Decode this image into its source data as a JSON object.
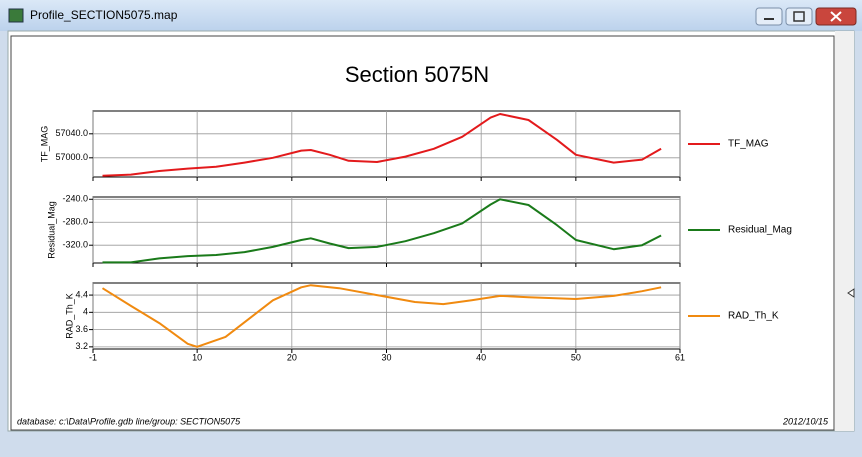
{
  "window": {
    "title": "Profile_SECTION5075.map"
  },
  "figure_title": "Section 5075N",
  "footer": {
    "left": "database: c:\\Data\\Profile.gdb  line/group: SECTION5075",
    "right": "2012/10/15"
  },
  "chart_data": [
    {
      "type": "line",
      "y_label": "TF_MAG",
      "grid": true,
      "x": [
        0,
        3,
        6,
        9,
        12,
        15,
        18,
        21,
        22,
        24,
        26,
        29,
        32,
        35,
        38,
        41,
        42,
        45,
        48,
        50,
        54,
        57,
        59
      ],
      "series": [
        {
          "name": "TF_MAG",
          "color": "#e31a1c",
          "values": [
            56970,
            56972,
            56978,
            56982,
            56985,
            56992,
            57000,
            57012,
            57013,
            57005,
            56995,
            56993,
            57002,
            57015,
            57035,
            57067,
            57073,
            57063,
            57030,
            57005,
            56992,
            56997,
            57015
          ]
        }
      ],
      "xlim": [
        -1,
        61
      ],
      "ylim": [
        56968,
        57078
      ],
      "yticks": [
        {
          "value": 57000,
          "label": "57000.0"
        },
        {
          "value": 57040,
          "label": "57040.0"
        }
      ]
    },
    {
      "type": "line",
      "y_label": "Residual_Mag",
      "grid": true,
      "x": [
        0,
        3,
        6,
        9,
        12,
        15,
        18,
        21,
        22,
        24,
        26,
        29,
        32,
        35,
        38,
        41,
        42,
        45,
        48,
        50,
        54,
        57,
        59
      ],
      "series": [
        {
          "name": "Residual_Mag",
          "color": "#1a7a1a",
          "values": [
            -350,
            -350,
            -343,
            -339,
            -337,
            -332,
            -323,
            -311,
            -308,
            -317,
            -325,
            -323,
            -313,
            -299,
            -282,
            -249,
            -240,
            -250,
            -285,
            -311,
            -327,
            -320,
            -303
          ]
        }
      ],
      "xlim": [
        -1,
        61
      ],
      "ylim": [
        -351,
        -236
      ],
      "yticks": [
        {
          "value": -320,
          "label": "-320.0"
        },
        {
          "value": -280,
          "label": "-280.0"
        },
        {
          "value": -240,
          "label": "-240.0"
        }
      ]
    },
    {
      "type": "line",
      "y_label": "RAD_Th_K",
      "grid": true,
      "x": [
        0,
        3,
        6,
        9,
        10,
        13,
        16,
        18,
        21,
        22,
        25,
        29,
        33,
        36,
        39,
        42,
        45,
        50,
        54,
        57,
        59
      ],
      "series": [
        {
          "name": "RAD_Th_K",
          "color": "#f08a10",
          "values": [
            4.56,
            4.15,
            3.75,
            3.27,
            3.2,
            3.43,
            3.94,
            4.28,
            4.58,
            4.63,
            4.56,
            4.4,
            4.24,
            4.19,
            4.28,
            4.38,
            4.35,
            4.31,
            4.38,
            4.49,
            4.58
          ]
        }
      ],
      "xlim": [
        -1,
        61
      ],
      "ylim": [
        3.15,
        4.68
      ],
      "xticks": [
        -1,
        10,
        20,
        30,
        40,
        50,
        61
      ],
      "yticks": [
        3.2,
        3.6,
        4.0,
        4.4
      ]
    }
  ]
}
